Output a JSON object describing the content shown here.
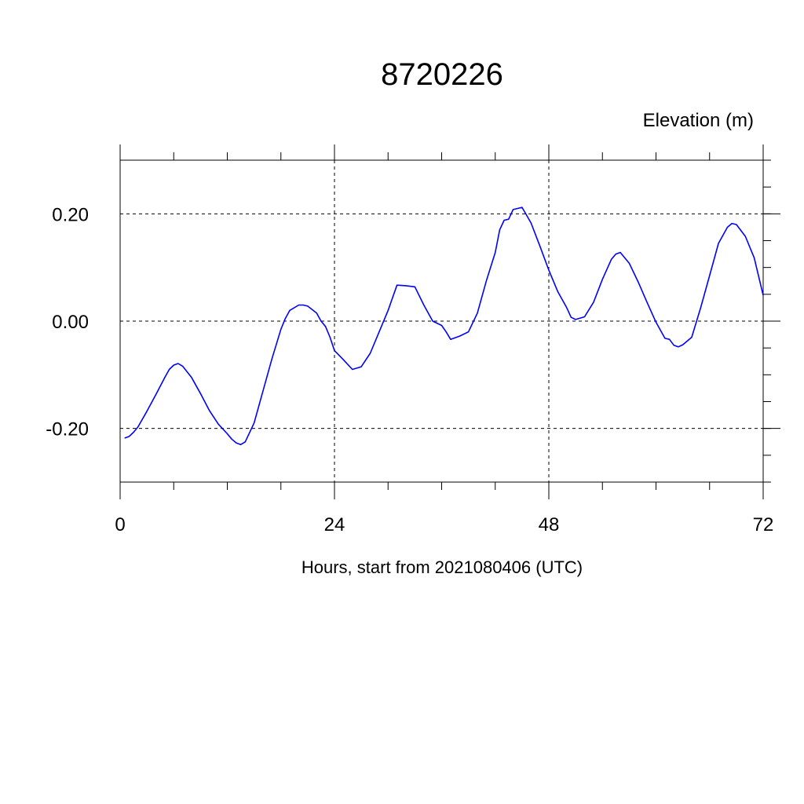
{
  "chart_data": {
    "type": "line",
    "title": "8720226",
    "ylabel": "Elevation (m)",
    "xlabel": "Hours, start from 2021080406 (UTC)",
    "xlim": [
      0,
      72
    ],
    "ylim": [
      -0.3,
      0.3
    ],
    "xticks": [
      0,
      24,
      48,
      72
    ],
    "xtick_labels": [
      "0",
      "24",
      "48",
      "72"
    ],
    "yticks": [
      0.2,
      0.0,
      -0.2
    ],
    "ytick_labels": [
      "0.20",
      "0.00",
      "-0.20"
    ],
    "grid": true,
    "series": [
      {
        "color": "#0000ff",
        "x": [
          0.5,
          1,
          1.5,
          2,
          3,
          4,
          5,
          5.5,
          6,
          6.5,
          7,
          8,
          9,
          10,
          11,
          12,
          12.5,
          13,
          13.5,
          14,
          15,
          16,
          17,
          18,
          18.5,
          19,
          20,
          20.5,
          21,
          22,
          22.5,
          23,
          23.5,
          24,
          25,
          26,
          27,
          28,
          29,
          30,
          31,
          32,
          33,
          34,
          35,
          36,
          36.5,
          37,
          38,
          39,
          40,
          41,
          42,
          42.5,
          43,
          43.5,
          44,
          45,
          46,
          47,
          48,
          49,
          50,
          50.5,
          51,
          52,
          53,
          54,
          55,
          55.5,
          56,
          57,
          58,
          59,
          60,
          61,
          61.5,
          62,
          62.5,
          63,
          64,
          65,
          66,
          67,
          68,
          68.5,
          69,
          70,
          71,
          72
        ],
        "values": [
          -0.218,
          -0.215,
          -0.207,
          -0.197,
          -0.168,
          -0.137,
          -0.105,
          -0.09,
          -0.082,
          -0.079,
          -0.084,
          -0.105,
          -0.135,
          -0.167,
          -0.192,
          -0.21,
          -0.22,
          -0.227,
          -0.23,
          -0.225,
          -0.19,
          -0.13,
          -0.07,
          -0.015,
          0.005,
          0.02,
          0.03,
          0.03,
          0.028,
          0.015,
          0.0,
          -0.01,
          -0.03,
          -0.055,
          -0.072,
          -0.09,
          -0.085,
          -0.06,
          -0.02,
          0.02,
          0.067,
          0.066,
          0.064,
          0.03,
          0.0,
          -0.008,
          -0.02,
          -0.034,
          -0.028,
          -0.02,
          0.015,
          0.075,
          0.128,
          0.17,
          0.188,
          0.19,
          0.208,
          0.212,
          0.183,
          0.14,
          0.095,
          0.055,
          0.025,
          0.007,
          0.003,
          0.008,
          0.035,
          0.078,
          0.115,
          0.125,
          0.128,
          0.108,
          0.073,
          0.035,
          -0.002,
          -0.032,
          -0.034,
          -0.045,
          -0.048,
          -0.044,
          -0.03,
          0.025,
          0.085,
          0.145,
          0.175,
          0.182,
          0.18,
          0.158,
          0.118,
          0.048
        ]
      }
    ]
  }
}
